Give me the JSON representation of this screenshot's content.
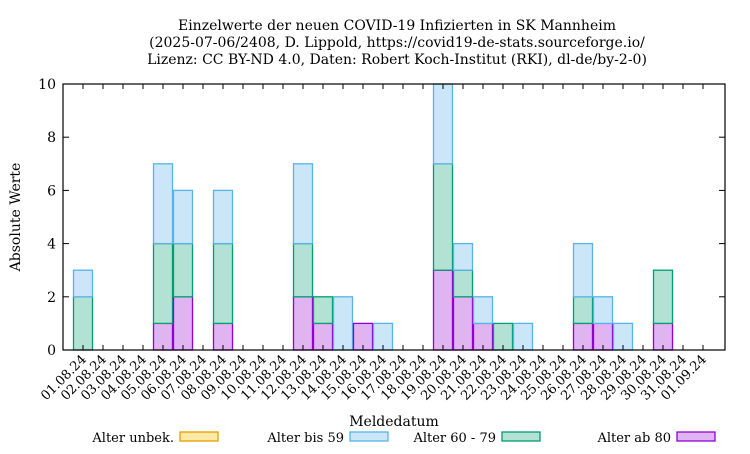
{
  "chart_data": {
    "type": "bar",
    "stacked": true,
    "title": [
      "Einzelwerte der neuen COVID-19 Infizierten in SK Mannheim",
      "(2025-07-06/2408, D. Lippold, https://covid19-de-stats.sourceforge.io/",
      "Lizenz: CC BY-ND 4.0, Daten: Robert Koch-Institut (RKI), dl-de/by-2-0)"
    ],
    "xlabel": "Meldedatum",
    "ylabel": "Absolute Werte",
    "ylim": [
      0,
      10
    ],
    "yticks": [
      "0",
      "2",
      "4",
      "6",
      "8",
      "10"
    ],
    "legend_placement": "bottom",
    "categories": [
      "01.08.24",
      "02.08.24",
      "03.08.24",
      "04.08.24",
      "05.08.24",
      "06.08.24",
      "07.08.24",
      "08.08.24",
      "09.08.24",
      "10.08.24",
      "11.08.24",
      "12.08.24",
      "13.08.24",
      "14.08.24",
      "15.08.24",
      "16.08.24",
      "17.08.24",
      "18.08.24",
      "19.08.24",
      "20.08.24",
      "21.08.24",
      "22.08.24",
      "23.08.24",
      "24.08.24",
      "25.08.24",
      "26.08.24",
      "27.08.24",
      "28.08.24",
      "29.08.24",
      "30.08.24",
      "31.08.24",
      "01.09.24"
    ],
    "series": [
      {
        "name": "Alter ab 80",
        "color": "#e0b4f0",
        "edge": "#9400d3",
        "values": [
          0,
          0,
          0,
          0,
          1,
          2,
          0,
          1,
          0,
          0,
          0,
          2,
          1,
          0,
          1,
          0,
          0,
          0,
          3,
          2,
          1,
          0,
          0,
          0,
          0,
          1,
          1,
          0,
          0,
          1,
          0,
          0
        ]
      },
      {
        "name": "Alter 60 - 79",
        "color": "#b3e2d4",
        "edge": "#009e73",
        "values": [
          2,
          0,
          0,
          0,
          3,
          2,
          0,
          3,
          0,
          0,
          0,
          2,
          1,
          0,
          0,
          0,
          0,
          0,
          4,
          1,
          0,
          1,
          0,
          0,
          0,
          1,
          0,
          0,
          0,
          2,
          0,
          0
        ]
      },
      {
        "name": "Alter bis 59",
        "color": "#cbe6f7",
        "edge": "#56b4e9",
        "values": [
          1,
          0,
          0,
          0,
          3,
          2,
          0,
          2,
          0,
          0,
          0,
          3,
          0,
          2,
          0,
          1,
          0,
          0,
          3,
          1,
          1,
          0,
          1,
          0,
          0,
          2,
          1,
          1,
          0,
          0,
          0,
          0
        ]
      },
      {
        "name": "Alter unbek.",
        "color": "#fde9a8",
        "edge": "#e69f00",
        "values": [
          0,
          0,
          0,
          0,
          0,
          0,
          0,
          0,
          0,
          0,
          0,
          0,
          0,
          0,
          0,
          0,
          0,
          0,
          0,
          0,
          0,
          0,
          0,
          0,
          0,
          0,
          0,
          0,
          0,
          0,
          0,
          0
        ]
      }
    ],
    "legend_order": [
      "Alter unbek.",
      "Alter bis 59",
      "Alter 60 - 79",
      "Alter ab 80"
    ]
  }
}
